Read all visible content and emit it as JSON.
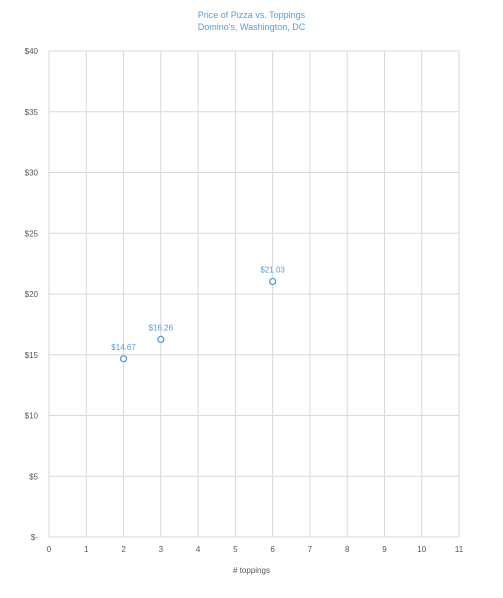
{
  "colors": {
    "accent": "#5b9bd5",
    "grid": "#d9d9d9",
    "axis_text": "#555555"
  },
  "chart_data": {
    "type": "scatter",
    "title": "Price of Pizza vs. Toppings",
    "subtitle": "Domino's, Washington, DC",
    "xlabel": "# toppings",
    "ylabel": "",
    "xlim": [
      0,
      11
    ],
    "ylim": [
      0,
      40
    ],
    "x_ticks": [
      "0",
      "1",
      "2",
      "3",
      "4",
      "5",
      "6",
      "7",
      "8",
      "9",
      "10",
      "11"
    ],
    "y_ticks": [
      "$-",
      "$5",
      "$10",
      "$15",
      "$20",
      "$25",
      "$30",
      "$35",
      "$40"
    ],
    "grid": true,
    "legend": "none",
    "points": [
      {
        "x": 2,
        "y": 14.67,
        "label": "$14.67"
      },
      {
        "x": 3,
        "y": 16.26,
        "label": "$16.26"
      },
      {
        "x": 6,
        "y": 21.03,
        "label": "$21.03"
      }
    ]
  }
}
